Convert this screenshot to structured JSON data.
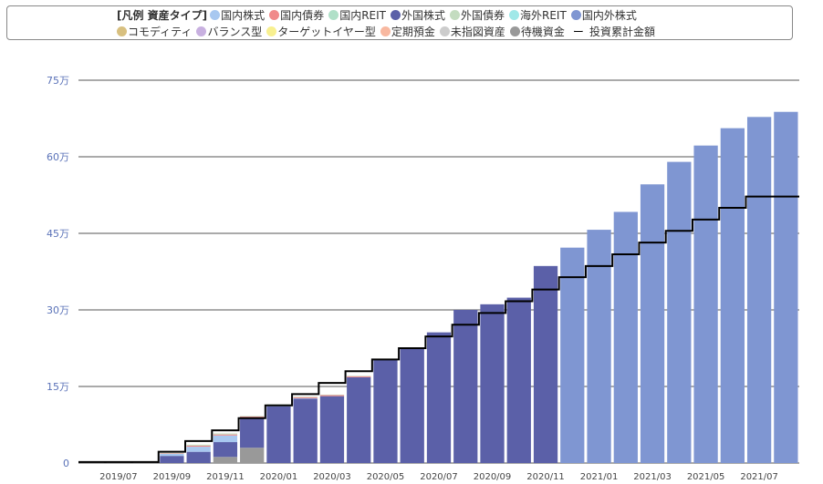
{
  "legend": {
    "title": "[凡例 資産タイプ]",
    "items": [
      {
        "label": "国内株式",
        "color": "#a8c8f0"
      },
      {
        "label": "国内債券",
        "color": "#f08a8a"
      },
      {
        "label": "国内REIT",
        "color": "#b0e0c8"
      },
      {
        "label": "外国株式",
        "color": "#5b60a8"
      },
      {
        "label": "外国債券",
        "color": "#c4dcc0"
      },
      {
        "label": "海外REIT",
        "color": "#a0e8e8"
      },
      {
        "label": "国内外株式",
        "color": "#7f96d2"
      },
      {
        "label": "コモディティ",
        "color": "#d8c080"
      },
      {
        "label": "バランス型",
        "color": "#c8b0e0"
      },
      {
        "label": "ターゲットイヤー型",
        "color": "#f8f090"
      },
      {
        "label": "定期預金",
        "color": "#f8b8a0"
      },
      {
        "label": "未指図資産",
        "color": "#cccccc"
      },
      {
        "label": "待機資金",
        "color": "#999999"
      }
    ],
    "line_item": {
      "symbol": "ー",
      "label": "投資累計金額"
    }
  },
  "chart_data": {
    "type": "bar",
    "stacked": true,
    "categories": [
      "2019/06",
      "2019/07",
      "2019/08",
      "2019/09",
      "2019/10",
      "2019/11",
      "2019/12",
      "2020/01",
      "2020/02",
      "2020/03",
      "2020/04",
      "2020/05",
      "2020/06",
      "2020/07",
      "2020/08",
      "2020/09",
      "2020/10",
      "2020/11",
      "2020/12",
      "2021/01",
      "2021/02",
      "2021/03",
      "2021/04",
      "2021/05",
      "2021/06",
      "2021/07",
      "2021/08"
    ],
    "x_tick_labels": [
      "2019/07",
      "2019/09",
      "2019/11",
      "2020/01",
      "2020/03",
      "2020/05",
      "2020/07",
      "2020/09",
      "2020/11",
      "2021/01",
      "2021/03",
      "2021/05",
      "2021/07"
    ],
    "y_tick_labels": [
      "0",
      "15万",
      "30万",
      "45万",
      "60万",
      "75万"
    ],
    "ylim": [
      0,
      750000
    ],
    "y_ticks": [
      0,
      150000,
      300000,
      450000,
      600000,
      750000
    ],
    "series": [
      {
        "name": "待機資金",
        "color": "#999999",
        "values": [
          2000,
          2000,
          2000,
          0,
          0,
          12000,
          30000,
          0,
          0,
          0,
          0,
          0,
          0,
          0,
          0,
          0,
          0,
          0,
          0,
          0,
          0,
          0,
          0,
          0,
          0,
          0,
          0
        ]
      },
      {
        "name": "外国株式",
        "color": "#5b60a8",
        "values": [
          0,
          0,
          0,
          14000,
          22000,
          29000,
          57000,
          111000,
          126000,
          131000,
          168000,
          202000,
          224000,
          256000,
          300000,
          311000,
          324000,
          386000,
          0,
          0,
          0,
          0,
          0,
          0,
          0,
          0,
          0
        ]
      },
      {
        "name": "国内外株式",
        "color": "#7f96d2",
        "values": [
          0,
          0,
          0,
          0,
          0,
          0,
          0,
          0,
          0,
          0,
          0,
          0,
          0,
          0,
          0,
          0,
          0,
          0,
          422000,
          457000,
          492000,
          546000,
          590000,
          622000,
          656000,
          678000,
          688000
        ]
      },
      {
        "name": "国内株式",
        "color": "#a8c8f0",
        "values": [
          0,
          0,
          0,
          4000,
          10000,
          13000,
          2000,
          1000,
          1000,
          0,
          0,
          0,
          0,
          0,
          0,
          0,
          0,
          0,
          0,
          0,
          0,
          0,
          0,
          0,
          0,
          0,
          0
        ]
      },
      {
        "name": "国内債券",
        "color": "#f08a8a",
        "values": [
          0,
          0,
          0,
          1000,
          2000,
          2000,
          2000,
          2000,
          2000,
          2000,
          2000,
          0,
          0,
          0,
          0,
          0,
          0,
          0,
          0,
          0,
          0,
          0,
          0,
          0,
          0,
          0,
          0
        ]
      },
      {
        "name": "外国債券",
        "color": "#c4dcc0",
        "values": [
          0,
          0,
          0,
          1000,
          2000,
          2000,
          1000,
          1000,
          1000,
          1000,
          1000,
          0,
          0,
          0,
          0,
          0,
          0,
          0,
          0,
          0,
          0,
          0,
          0,
          0,
          0,
          0,
          0
        ]
      }
    ],
    "line_series": {
      "name": "投資累計金額",
      "color": "#000000",
      "values": [
        2000,
        2000,
        2000,
        22000,
        43000,
        64000,
        88000,
        113000,
        135000,
        157000,
        180000,
        203000,
        225000,
        248000,
        271000,
        294000,
        317000,
        340000,
        364000,
        386000,
        409000,
        432000,
        455000,
        477000,
        500000,
        522000,
        522000
      ]
    }
  }
}
